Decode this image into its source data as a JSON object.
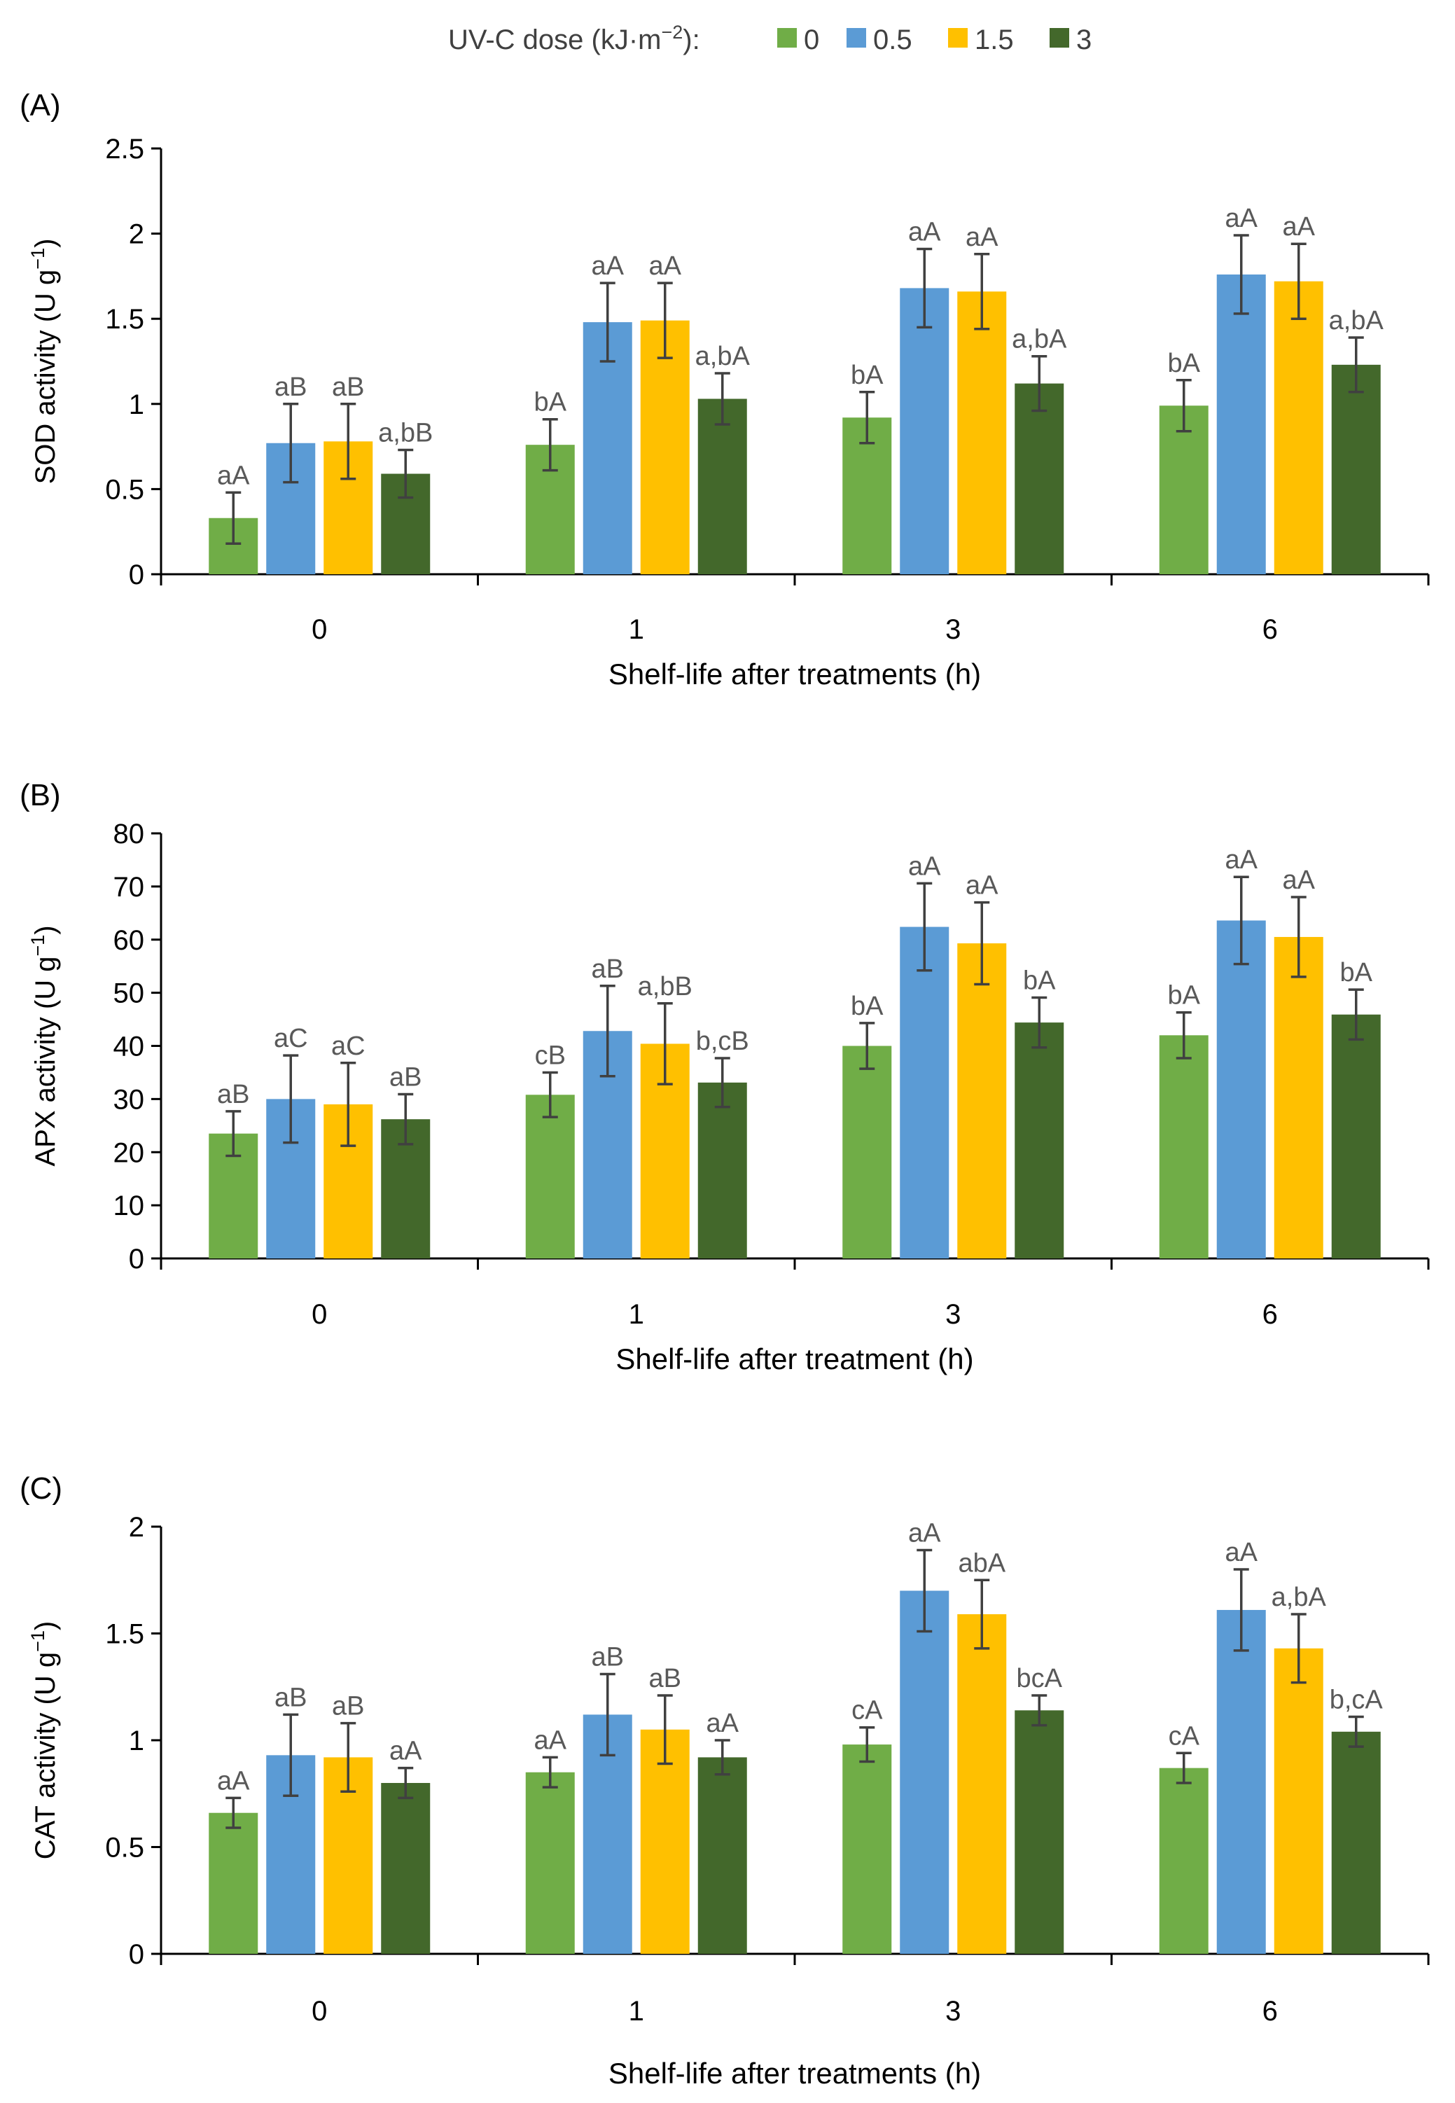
{
  "legend": {
    "title_prefix": "UV-C dose (kJ·m",
    "title_exp": "−2",
    "title_suffix": "):",
    "entries": [
      {
        "name": "0",
        "color": "#70ad47"
      },
      {
        "name": "0.5",
        "color": "#5b9bd5"
      },
      {
        "name": "1.5",
        "color": "#ffc000"
      },
      {
        "name": "3",
        "color": "#43682b"
      }
    ]
  },
  "chart_data": [
    {
      "type": "bar",
      "panel_label": "(A)",
      "ylabel_prefix": "SOD activity (U g",
      "ylabel_exp": "−1",
      "ylabel_suffix": ")",
      "xlabel": "Shelf-life after treatments (h)",
      "ylim": [
        0,
        2.5
      ],
      "yticks": [
        "0",
        "0.5",
        "1",
        "1.5",
        "2",
        "2.5"
      ],
      "categories": [
        "0",
        "1",
        "3",
        "6"
      ],
      "series": [
        {
          "name": "0",
          "values": [
            0.33,
            0.76,
            0.92,
            0.99
          ],
          "errors": [
            0.15,
            0.15,
            0.15,
            0.15
          ],
          "labels": [
            "aA",
            "bA",
            "bA",
            "bA"
          ]
        },
        {
          "name": "0.5",
          "values": [
            0.77,
            1.48,
            1.68,
            1.76
          ],
          "errors": [
            0.23,
            0.23,
            0.23,
            0.23
          ],
          "labels": [
            "aB",
            "aA",
            "aA",
            "aA"
          ]
        },
        {
          "name": "1.5",
          "values": [
            0.78,
            1.49,
            1.66,
            1.72
          ],
          "errors": [
            0.22,
            0.22,
            0.22,
            0.22
          ],
          "labels": [
            "aB",
            "aA",
            "aA",
            "aA"
          ]
        },
        {
          "name": "3",
          "values": [
            0.59,
            1.03,
            1.12,
            1.23
          ],
          "errors": [
            0.14,
            0.15,
            0.16,
            0.16
          ],
          "labels": [
            "a,bB",
            "a,bA",
            "a,bA",
            "a,bA"
          ]
        }
      ]
    },
    {
      "type": "bar",
      "panel_label": "(B)",
      "ylabel_prefix": "APX activity (U g",
      "ylabel_exp": "−1",
      "ylabel_suffix": ")",
      "xlabel": "Shelf-life after treatment (h)",
      "ylim": [
        0,
        80
      ],
      "yticks": [
        "0",
        "10",
        "20",
        "30",
        "40",
        "50",
        "60",
        "70",
        "80"
      ],
      "categories": [
        "0",
        "1",
        "3",
        "6"
      ],
      "series": [
        {
          "name": "0",
          "values": [
            23.5,
            30.8,
            40.0,
            42.0
          ],
          "errors": [
            4.2,
            4.2,
            4.3,
            4.3
          ],
          "labels": [
            "aB",
            "cB",
            "bA",
            "bA"
          ]
        },
        {
          "name": "0.5",
          "values": [
            30.0,
            42.8,
            62.4,
            63.6
          ],
          "errors": [
            8.2,
            8.5,
            8.2,
            8.2
          ],
          "labels": [
            "aC",
            "aB",
            "aA",
            "aA"
          ]
        },
        {
          "name": "1.5",
          "values": [
            29.0,
            40.4,
            59.3,
            60.5
          ],
          "errors": [
            7.8,
            7.6,
            7.7,
            7.5
          ],
          "labels": [
            "aC",
            "a,bB",
            "aA",
            "aA"
          ]
        },
        {
          "name": "3",
          "values": [
            26.2,
            33.1,
            44.4,
            45.9
          ],
          "errors": [
            4.7,
            4.6,
            4.7,
            4.7
          ],
          "labels": [
            "aB",
            "b,cB",
            "bA",
            "bA"
          ]
        }
      ]
    },
    {
      "type": "bar",
      "panel_label": "(C)",
      "ylabel_prefix": "CAT activity (U g",
      "ylabel_exp": "−1",
      "ylabel_suffix": ")",
      "xlabel": "Shelf-life after treatments (h)",
      "ylim": [
        0,
        2
      ],
      "yticks": [
        "0",
        "0.5",
        "1",
        "1.5",
        "2"
      ],
      "categories": [
        "0",
        "1",
        "3",
        "6"
      ],
      "series": [
        {
          "name": "0",
          "values": [
            0.66,
            0.85,
            0.98,
            0.87
          ],
          "errors": [
            0.07,
            0.07,
            0.08,
            0.07
          ],
          "labels": [
            "aA",
            "aA",
            "cA",
            "cA"
          ]
        },
        {
          "name": "0.5",
          "values": [
            0.93,
            1.12,
            1.7,
            1.61
          ],
          "errors": [
            0.19,
            0.19,
            0.19,
            0.19
          ],
          "labels": [
            "aB",
            "aB",
            "aA",
            "aA"
          ]
        },
        {
          "name": "1.5",
          "values": [
            0.92,
            1.05,
            1.59,
            1.43
          ],
          "errors": [
            0.16,
            0.16,
            0.16,
            0.16
          ],
          "labels": [
            "aB",
            "aB",
            "abA",
            "a,bA"
          ]
        },
        {
          "name": "3",
          "values": [
            0.8,
            0.92,
            1.14,
            1.04
          ],
          "errors": [
            0.07,
            0.08,
            0.07,
            0.07
          ],
          "labels": [
            "aA",
            "aA",
            "bcA",
            "b,cA"
          ]
        }
      ]
    }
  ]
}
